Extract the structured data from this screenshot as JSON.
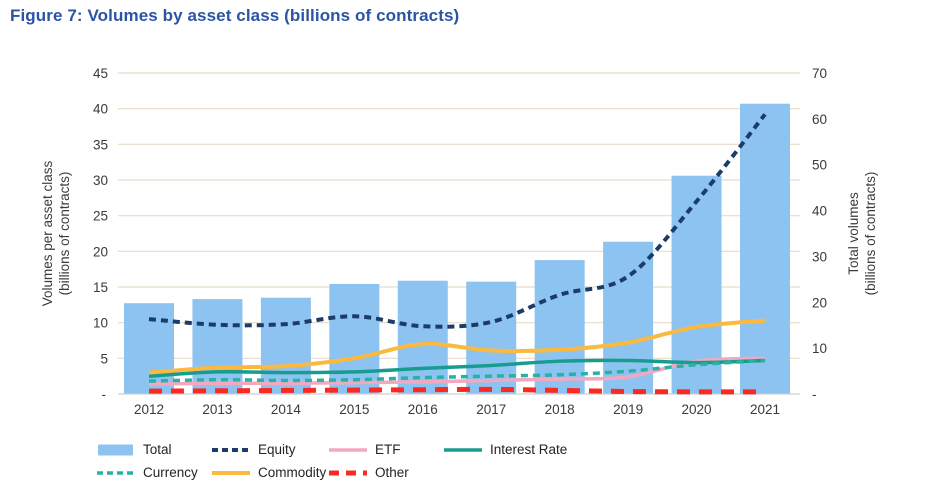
{
  "title": "Figure 7: Volumes by asset class (billions of contracts)",
  "colors": {
    "title": "#2B55A4",
    "bar": "#8DC3F1",
    "gridline": "#E7DCC9",
    "axis_line": "#CFCFCF",
    "tick_label": "#3A3A3A",
    "legend_label": "#242424"
  },
  "chart_data": {
    "type": "combo-bar-line",
    "title": "Figure 7: Volumes by asset class (billions of contracts)",
    "categories": [
      "2012",
      "2013",
      "2014",
      "2015",
      "2016",
      "2017",
      "2018",
      "2019",
      "2020",
      "2021"
    ],
    "bar_series": {
      "name": "Total",
      "axis": "right",
      "color": "#8DC3F1",
      "values": [
        19.8,
        20.7,
        21.0,
        24.0,
        24.7,
        24.5,
        29.2,
        33.2,
        47.6,
        63.3
      ]
    },
    "line_series": [
      {
        "name": "Equity",
        "axis": "left",
        "color": "#1B3B6A",
        "dash": "7 5",
        "width": 4,
        "values": [
          10.5,
          9.7,
          9.8,
          10.9,
          9.5,
          10.1,
          13.9,
          16.5,
          27.0,
          39.2
        ]
      },
      {
        "name": "ETF",
        "axis": "left",
        "color": "#F4A8C0",
        "dash": "",
        "width": 3.5,
        "values": [
          1.4,
          1.5,
          1.5,
          1.6,
          1.7,
          1.9,
          2.1,
          2.4,
          4.6,
          5.0
        ]
      },
      {
        "name": "Interest Rate",
        "axis": "left",
        "color": "#189C8F",
        "dash": "",
        "width": 3.5,
        "values": [
          2.5,
          3.1,
          3.0,
          3.1,
          3.6,
          4.0,
          4.6,
          4.7,
          4.4,
          4.7
        ]
      },
      {
        "name": "Currency",
        "axis": "left",
        "color": "#28B2A3",
        "dash": "7 5",
        "width": 3.5,
        "values": [
          1.8,
          2.0,
          1.9,
          2.0,
          2.3,
          2.5,
          2.7,
          3.2,
          4.1,
          4.7
        ]
      },
      {
        "name": "Commodity",
        "axis": "left",
        "color": "#FBB93D",
        "dash": "",
        "width": 4,
        "values": [
          3.0,
          3.7,
          3.9,
          5.0,
          7.0,
          6.1,
          6.2,
          7.2,
          9.4,
          10.3
        ]
      },
      {
        "name": "Other",
        "axis": "left",
        "color": "#F92A21",
        "dash": "13 9",
        "width": 5,
        "values": [
          0.4,
          0.45,
          0.5,
          0.55,
          0.6,
          0.65,
          0.5,
          0.35,
          0.3,
          0.3
        ]
      }
    ],
    "left_axis": {
      "title_lines": [
        "Volumes per asset class",
        "(billions of contracts)"
      ],
      "min": 0,
      "max": 45,
      "step": 5,
      "zero_label": "-"
    },
    "right_axis": {
      "title_lines": [
        "Total volumes",
        "(billions of contracts)"
      ],
      "min": 0,
      "max": 70,
      "step": 10,
      "zero_label": "-"
    },
    "grid": true,
    "legend_position": "bottom"
  },
  "legend": {
    "rows": [
      [
        "Total",
        "Equity",
        "ETF",
        "Interest Rate"
      ],
      [
        "Currency",
        "Commodity",
        "Other"
      ]
    ]
  }
}
